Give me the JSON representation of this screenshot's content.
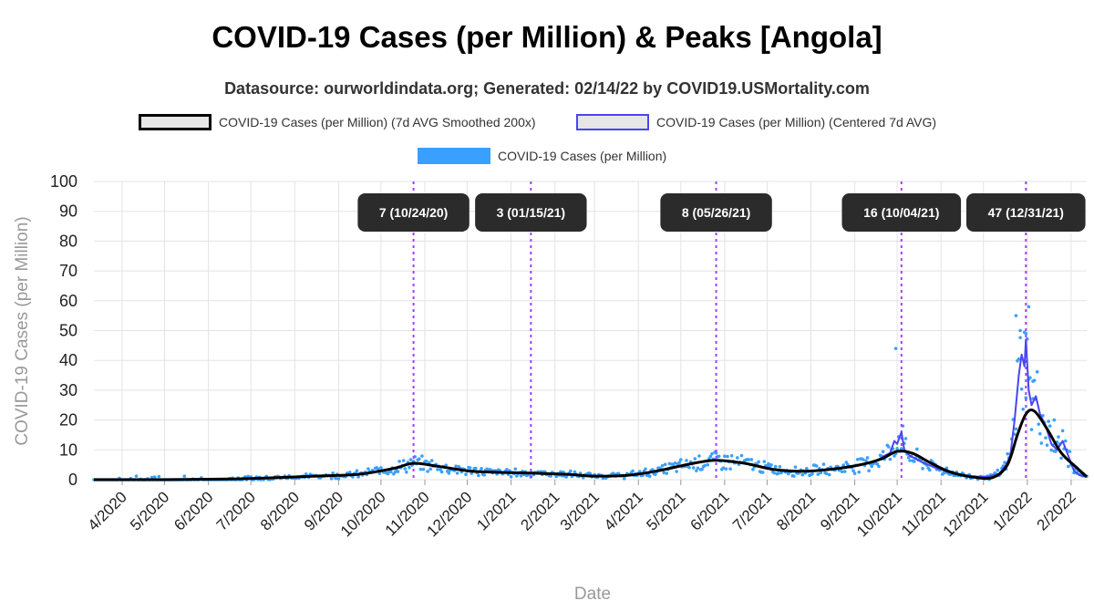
{
  "title": "COVID-19 Cases (per Million) & Peaks [Angola]",
  "subtitle": "Datasource: ourworldindata.org; Generated: 02/14/22 by COVID19.USMortality.com",
  "colors": {
    "smoothed": "#000000",
    "centered": "#4a45f0",
    "daily": "#3aa0ff",
    "peak_line": "#a040ff",
    "peak_box": "#2b2b2b",
    "grid": "#e3e3e3"
  },
  "chart_data": {
    "type": "line",
    "title": "COVID-19 Cases (per Million) & Peaks [Angola]",
    "xlabel": "Date",
    "ylabel": "COVID-19 Cases (per Million)",
    "ylim": [
      0,
      100
    ],
    "xlim": [
      "2020-03-12",
      "2022-02-12"
    ],
    "yticks": [
      0,
      10,
      20,
      30,
      40,
      50,
      60,
      70,
      80,
      90,
      100
    ],
    "xticks": [
      {
        "date": "2020-04-01",
        "label": "4/2020"
      },
      {
        "date": "2020-05-01",
        "label": "5/2020"
      },
      {
        "date": "2020-06-01",
        "label": "6/2020"
      },
      {
        "date": "2020-07-01",
        "label": "7/2020"
      },
      {
        "date": "2020-08-01",
        "label": "8/2020"
      },
      {
        "date": "2020-09-01",
        "label": "9/2020"
      },
      {
        "date": "2020-10-01",
        "label": "10/2020"
      },
      {
        "date": "2020-11-01",
        "label": "11/2020"
      },
      {
        "date": "2020-12-01",
        "label": "12/2020"
      },
      {
        "date": "2021-01-01",
        "label": "1/2021"
      },
      {
        "date": "2021-02-01",
        "label": "2/2021"
      },
      {
        "date": "2021-03-01",
        "label": "3/2021"
      },
      {
        "date": "2021-04-01",
        "label": "4/2021"
      },
      {
        "date": "2021-05-01",
        "label": "5/2021"
      },
      {
        "date": "2021-06-01",
        "label": "6/2021"
      },
      {
        "date": "2021-07-01",
        "label": "7/2021"
      },
      {
        "date": "2021-08-01",
        "label": "8/2021"
      },
      {
        "date": "2021-09-01",
        "label": "9/2021"
      },
      {
        "date": "2021-10-01",
        "label": "10/2021"
      },
      {
        "date": "2021-11-01",
        "label": "11/2021"
      },
      {
        "date": "2021-12-01",
        "label": "12/2021"
      },
      {
        "date": "2022-01-01",
        "label": "1/2022"
      },
      {
        "date": "2022-02-01",
        "label": "2/2022"
      }
    ],
    "legend": [
      {
        "name": "COVID-19 Cases (per Million) (7d AVG Smoothed 200x)",
        "style": "smoothed"
      },
      {
        "name": "COVID-19 Cases (per Million) (Centered 7d AVG)",
        "style": "centered"
      },
      {
        "name": "COVID-19 Cases (per Million)",
        "style": "daily"
      }
    ],
    "peaks": [
      {
        "date": "2020-10-24",
        "label": "7 (10/24/20)"
      },
      {
        "date": "2021-01-15",
        "label": "3 (01/15/21)"
      },
      {
        "date": "2021-05-26",
        "label": "8 (05/26/21)"
      },
      {
        "date": "2021-10-04",
        "label": "16 (10/04/21)"
      },
      {
        "date": "2021-12-31",
        "label": "47 (12/31/21)"
      }
    ],
    "series": [
      {
        "name": "COVID-19 Cases (per Million) (7d AVG Smoothed 200x)",
        "x": [
          "2020-03-12",
          "2020-05-01",
          "2020-06-15",
          "2020-07-15",
          "2020-08-15",
          "2020-09-15",
          "2020-10-10",
          "2020-10-24",
          "2020-11-10",
          "2020-12-01",
          "2020-12-20",
          "2021-01-15",
          "2021-02-10",
          "2021-03-01",
          "2021-03-25",
          "2021-04-15",
          "2021-05-10",
          "2021-05-26",
          "2021-06-15",
          "2021-07-05",
          "2021-07-25",
          "2021-08-15",
          "2021-09-05",
          "2021-09-20",
          "2021-10-01",
          "2021-10-12",
          "2021-10-25",
          "2021-11-08",
          "2021-11-25",
          "2021-12-08",
          "2021-12-18",
          "2021-12-25",
          "2021-12-31",
          "2022-01-06",
          "2022-01-15",
          "2022-01-25",
          "2022-02-05",
          "2022-02-12"
        ],
        "values": [
          0,
          0,
          0.2,
          0.6,
          1.2,
          1.8,
          3.8,
          5.5,
          4.5,
          3.0,
          2.5,
          2.2,
          1.8,
          1.2,
          1.5,
          3.0,
          5.5,
          6.5,
          5.5,
          3.5,
          2.8,
          3.5,
          5.0,
          7.0,
          9.5,
          8.8,
          5.5,
          2.5,
          0.8,
          0.8,
          5.0,
          15.0,
          22.0,
          23.0,
          17.0,
          9.0,
          4.0,
          1.0
        ]
      },
      {
        "name": "COVID-19 Cases (per Million) (Centered 7d AVG)",
        "x": [
          "2021-09-15",
          "2021-09-22",
          "2021-09-26",
          "2021-09-29",
          "2021-10-01",
          "2021-10-04",
          "2021-10-06",
          "2021-10-10",
          "2021-10-18",
          "2021-10-28",
          "2021-11-10",
          "2021-11-25",
          "2021-12-05",
          "2021-12-12",
          "2021-12-17",
          "2021-12-20",
          "2021-12-23",
          "2021-12-26",
          "2021-12-28",
          "2021-12-30",
          "2021-12-31",
          "2022-01-02",
          "2022-01-04",
          "2022-01-07",
          "2022-01-10",
          "2022-01-14",
          "2022-01-18",
          "2022-01-22",
          "2022-01-26",
          "2022-01-30",
          "2022-02-03",
          "2022-02-07",
          "2022-02-12"
        ],
        "values": [
          6,
          8,
          9,
          13,
          12,
          16,
          10,
          8,
          6,
          4,
          2,
          1,
          1,
          2,
          5,
          8,
          20,
          35,
          42,
          38,
          47,
          30,
          25,
          28,
          22,
          18,
          12,
          10,
          13,
          8,
          3,
          1.5,
          1
        ]
      }
    ],
    "scatter_samples": {
      "name": "COVID-19 Cases (per Million)",
      "x": [
        "2021-09-30",
        "2021-12-24",
        "2021-12-27",
        "2021-12-31",
        "2022-01-02",
        "2022-01-05",
        "2022-01-20"
      ],
      "values": [
        44,
        55,
        50,
        49,
        58,
        33,
        20
      ]
    },
    "grid": true,
    "legend_position": "top"
  }
}
